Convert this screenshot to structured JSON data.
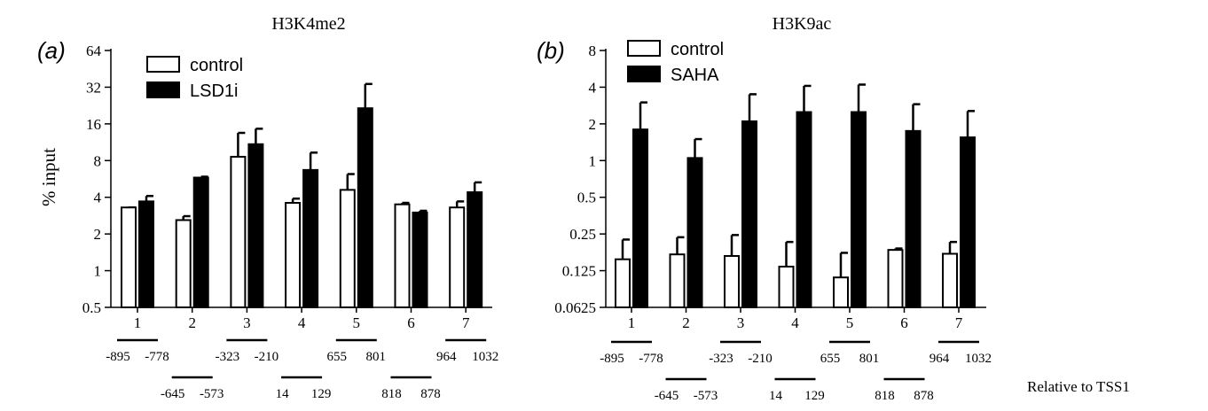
{
  "shared": {
    "ylabel": "% input",
    "footer_label": "Relative to TSS1"
  },
  "chart_data": [
    {
      "type": "bar",
      "panel_label": "(a)",
      "title": "H3K4me2",
      "ylabel": "% input",
      "yscale": "log2",
      "ylim": [
        0.5,
        64
      ],
      "yticks": [
        "0.5",
        "1",
        "2",
        "4",
        "8",
        "16",
        "32",
        "64"
      ],
      "categories": [
        "1",
        "2",
        "3",
        "4",
        "5",
        "6",
        "7"
      ],
      "legend_position": "top-left",
      "series": [
        {
          "name": "control",
          "color": "#ffffff",
          "values": [
            3.3,
            2.6,
            8.6,
            3.6,
            4.6,
            3.5,
            3.3
          ],
          "errors": [
            3.3,
            2.8,
            13.5,
            3.9,
            6.2,
            3.6,
            3.7
          ]
        },
        {
          "name": "LSD1i",
          "color": "#000000",
          "values": [
            3.7,
            5.8,
            10.9,
            6.7,
            21.5,
            3.0,
            4.4
          ],
          "errors": [
            4.1,
            5.9,
            14.6,
            9.3,
            34.0,
            3.1,
            5.3
          ]
        }
      ],
      "regions": [
        {
          "start": "-895",
          "end": "-778"
        },
        {
          "start": "-645",
          "end": "-573"
        },
        {
          "start": "-323",
          "end": "-210"
        },
        {
          "start": "14",
          "end": "129"
        },
        {
          "start": "655",
          "end": "801"
        },
        {
          "start": "818",
          "end": "878"
        },
        {
          "start": "964",
          "end": "1032"
        }
      ]
    },
    {
      "type": "bar",
      "panel_label": "(b)",
      "title": "H3K9ac",
      "yscale": "log2",
      "ylim": [
        0.0625,
        8
      ],
      "yticks": [
        "0.0625",
        "0.125",
        "0.25",
        "0.5",
        "1",
        "2",
        "4",
        "8"
      ],
      "categories": [
        "1",
        "2",
        "3",
        "4",
        "5",
        "6",
        "7"
      ],
      "legend_position": "top-left",
      "series": [
        {
          "name": "control",
          "color": "#ffffff",
          "values": [
            0.155,
            0.17,
            0.165,
            0.135,
            0.11,
            0.185,
            0.172
          ],
          "errors": [
            0.225,
            0.235,
            0.245,
            0.215,
            0.175,
            0.19,
            0.215
          ]
        },
        {
          "name": "SAHA",
          "color": "#000000",
          "values": [
            1.8,
            1.05,
            2.1,
            2.5,
            2.5,
            1.75,
            1.55
          ],
          "errors": [
            3.0,
            1.5,
            3.5,
            4.1,
            4.2,
            2.9,
            2.55
          ]
        }
      ],
      "regions": [
        {
          "start": "-895",
          "end": "-778"
        },
        {
          "start": "-645",
          "end": "-573"
        },
        {
          "start": "-323",
          "end": "-210"
        },
        {
          "start": "14",
          "end": "129"
        },
        {
          "start": "655",
          "end": "801"
        },
        {
          "start": "818",
          "end": "878"
        },
        {
          "start": "964",
          "end": "1032"
        }
      ]
    }
  ]
}
